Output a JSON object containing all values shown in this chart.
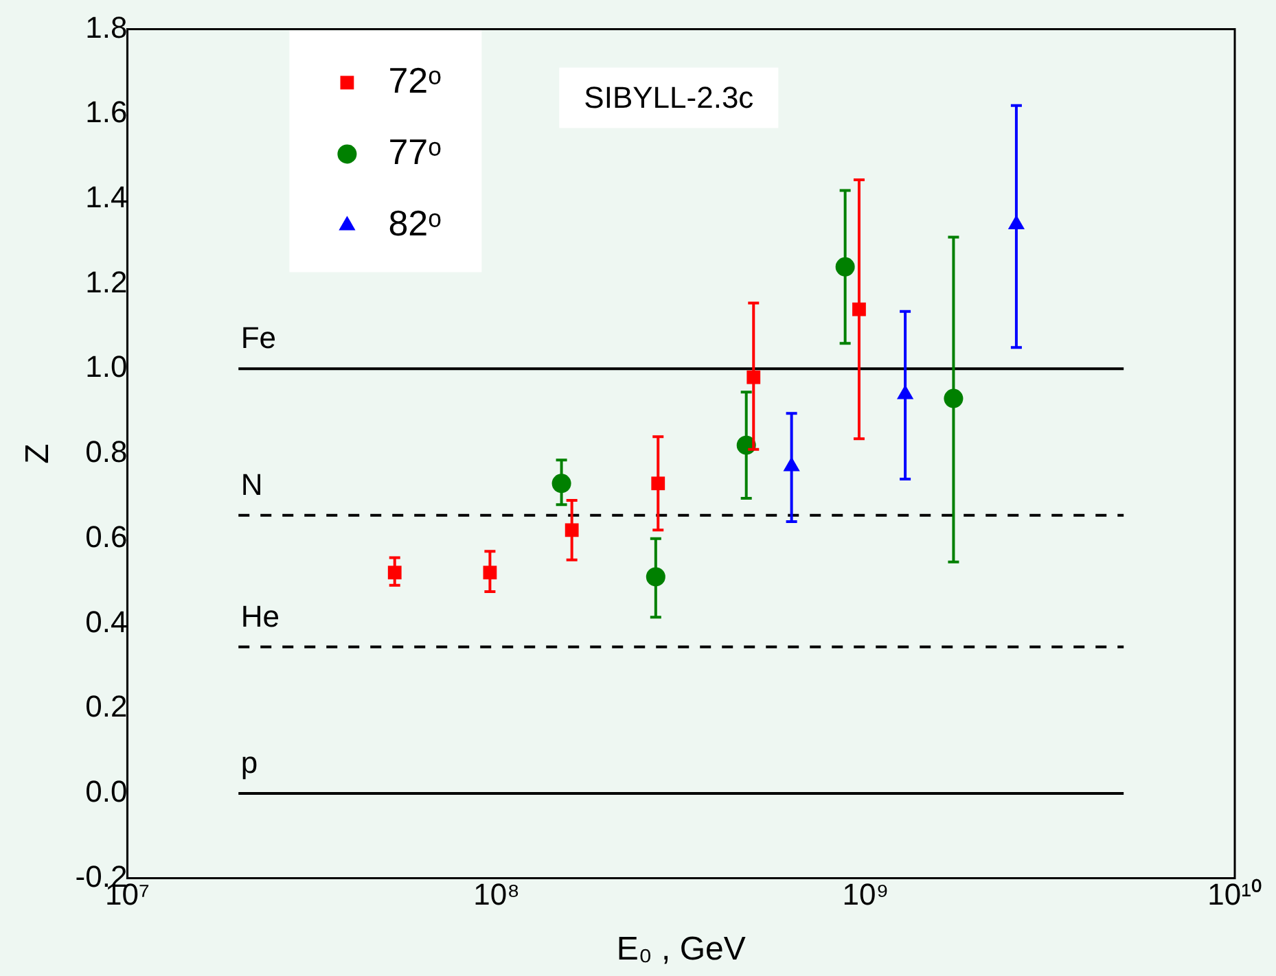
{
  "chart_data": {
    "type": "scatter",
    "xlabel": "E₀ , GeV",
    "ylabel": "Z",
    "log": "x",
    "grid": false,
    "legend": "top left",
    "xlim": [
      10000000,
      10000000000
    ],
    "xticks": [
      {
        "value": 10000000,
        "label": "10⁷"
      },
      {
        "value": 100000000,
        "label": "10⁸"
      },
      {
        "value": 1000000000,
        "label": "10⁹"
      },
      {
        "value": 10000000000,
        "label": "10¹⁰"
      }
    ],
    "ylim": [
      -0.2,
      1.8
    ],
    "yticks": [
      -0.2,
      {
        "value": 0,
        "label": "0.0"
      },
      0.2,
      0.4,
      0.6,
      0.8,
      {
        "value": 1,
        "label": "1.0"
      },
      1.2,
      1.4,
      1.6,
      1.8
    ],
    "series": [
      {
        "name": "72ᵒ",
        "color": "#ff0000",
        "marker": "square",
        "x": [
          53000000,
          96000000,
          160000000,
          274000000,
          497000000,
          960000000
        ],
        "values": [
          0.52,
          0.52,
          0.62,
          0.73,
          0.98,
          1.14
        ],
        "errors": [
          [
            0.49,
            0.555
          ],
          [
            0.475,
            0.57
          ],
          [
            0.55,
            0.69
          ],
          [
            0.62,
            0.84
          ],
          [
            0.81,
            1.155
          ],
          [
            0.835,
            1.445
          ]
        ]
      },
      {
        "name": "77ᵒ",
        "color": "#008000",
        "marker": "circle",
        "x": [
          150000000,
          270000000,
          475000000,
          880000000,
          1730000000
        ],
        "values": [
          0.73,
          0.51,
          0.82,
          1.24,
          0.93
        ],
        "errors": [
          [
            0.68,
            0.785
          ],
          [
            0.415,
            0.6
          ],
          [
            0.695,
            0.945
          ],
          [
            1.06,
            1.42
          ],
          [
            0.545,
            1.31
          ]
        ]
      },
      {
        "name": "82ᵒ",
        "color": "#0000ff",
        "marker": "triangle",
        "x": [
          630000000,
          1280000000,
          2560000000
        ],
        "values": [
          0.77,
          0.94,
          1.34
        ],
        "errors": [
          [
            0.64,
            0.895
          ],
          [
            0.74,
            1.135
          ],
          [
            1.05,
            1.62
          ]
        ]
      },
      {
        "type": "line",
        "color": "#000000",
        "line_style": "solid",
        "marker": "none",
        "x": [
          20000000,
          5000000000
        ],
        "values": [
          1,
          1
        ]
      },
      {
        "type": "line",
        "color": "#000000",
        "line_style": "dashed",
        "marker": "none",
        "x": [
          20000000,
          5000000000
        ],
        "values": [
          0.655,
          0.655
        ]
      },
      {
        "type": "line",
        "color": "#000000",
        "line_style": "dashed",
        "marker": "none",
        "x": [
          20000000,
          5000000000
        ],
        "values": [
          0.345,
          0.345
        ]
      },
      {
        "type": "line",
        "color": "#000000",
        "line_style": "solid",
        "marker": "none",
        "x": [
          20000000,
          5000000000
        ],
        "values": [
          0,
          0
        ]
      }
    ],
    "annotations": [
      "SIBYLL-2.3c",
      {
        "text": "Fe",
        "y": 1
      },
      {
        "text": "N",
        "y": 0.655
      },
      {
        "text": "He",
        "y": 0.345
      },
      {
        "text": "p",
        "y": 0
      }
    ]
  }
}
